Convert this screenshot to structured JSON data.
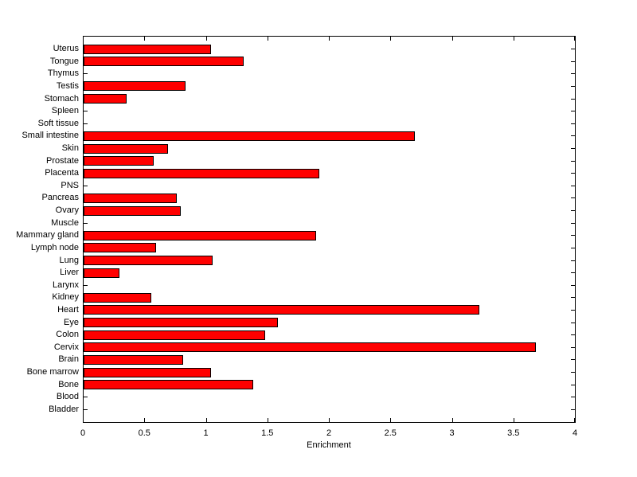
{
  "figure": {
    "background_color": "#ffffff",
    "axis_color": "#000000",
    "text_color": "#000000"
  },
  "chart_data": {
    "type": "bar",
    "orientation": "horizontal",
    "title": "",
    "xlabel": "Enrichment",
    "ylabel": "",
    "xlim": [
      0,
      4
    ],
    "xticks": [
      0,
      0.5,
      1,
      1.5,
      2,
      2.5,
      3,
      3.5,
      4
    ],
    "xtick_labels": [
      "0",
      "0.5",
      "1",
      "1.5",
      "2",
      "2.5",
      "3",
      "3.5",
      "4"
    ],
    "grid": false,
    "legend": null,
    "bar_color": "#ff0000",
    "bar_edge_color": "#000000",
    "categories": [
      "Uterus",
      "Tongue",
      "Thymus",
      "Testis",
      "Stomach",
      "Spleen",
      "Soft tissue",
      "Small intestine",
      "Skin",
      "Prostate",
      "Placenta",
      "PNS",
      "Pancreas",
      "Ovary",
      "Muscle",
      "Mammary gland",
      "Lymph node",
      "Lung",
      "Liver",
      "Larynx",
      "Kidney",
      "Heart",
      "Eye",
      "Colon",
      "Cervix",
      "Brain",
      "Bone marrow",
      "Bone",
      "Blood",
      "Bladder"
    ],
    "values": [
      1.04,
      1.3,
      0,
      0.83,
      0.35,
      0,
      0,
      2.7,
      0.69,
      0.57,
      1.92,
      0,
      0.76,
      0.79,
      0,
      1.89,
      0.59,
      1.05,
      0.29,
      0,
      0.55,
      3.22,
      1.58,
      1.48,
      3.68,
      0.81,
      1.04,
      1.38,
      0,
      0
    ]
  }
}
